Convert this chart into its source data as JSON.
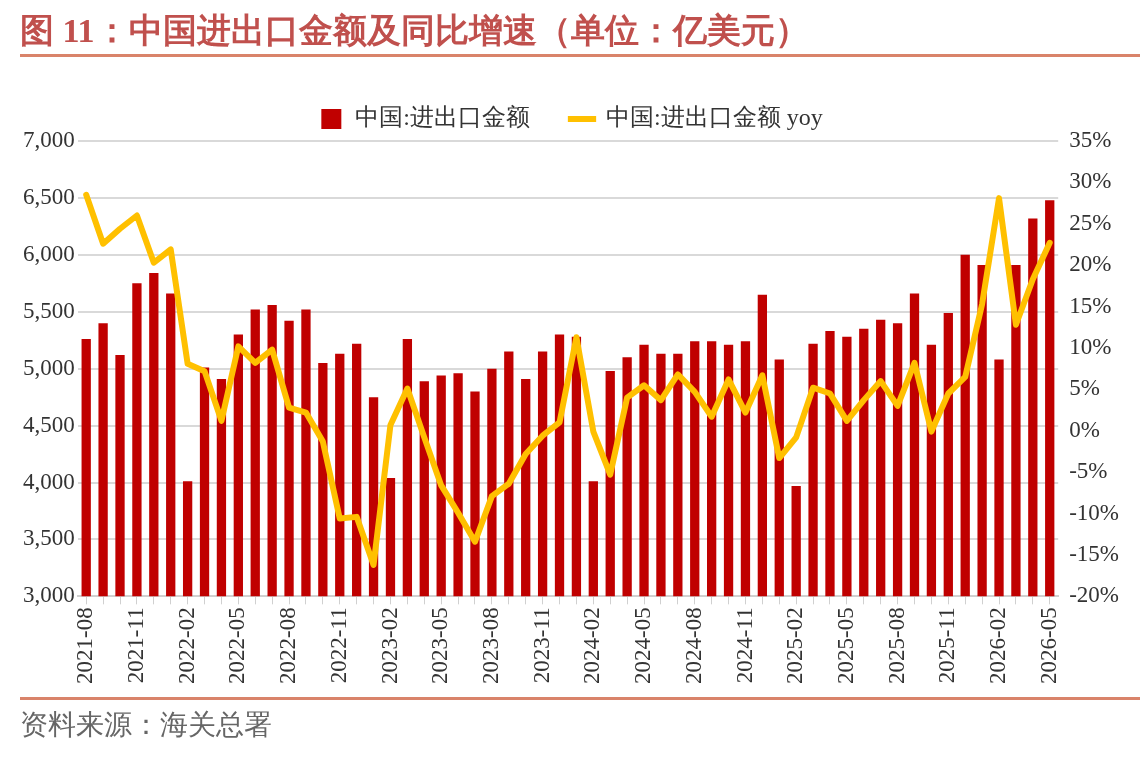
{
  "chart_data": {
    "type": "bar",
    "title": "图 11：中国进出口金额及同比增速（单位：亿美元）",
    "categories": [
      "2021-08",
      null,
      null,
      "2021-11",
      null,
      null,
      "2022-02",
      null,
      null,
      "2022-05",
      null,
      null,
      "2022-08",
      null,
      null,
      "2022-11",
      null,
      null,
      "2023-02",
      null,
      null,
      "2023-05",
      null,
      null,
      "2023-08",
      null,
      null,
      "2023-11",
      null,
      null,
      "2024-02",
      null,
      null,
      "2024-05",
      null,
      null,
      "2024-08",
      null,
      null,
      "2024-11",
      null,
      null,
      "2025-02",
      null,
      null,
      "2025-05",
      null,
      null,
      "2025-08",
      null,
      null,
      "2025-11",
      null,
      null,
      "2026-02",
      null,
      null,
      "2026-05"
    ],
    "series": [
      {
        "name": "中国:进出口金额",
        "color": "#c00000",
        "values": [
          5260,
          5400,
          5120,
          5750,
          5840,
          5660,
          4010,
          5010,
          4910,
          5300,
          5520,
          5560,
          5420,
          5520,
          5050,
          5130,
          5220,
          4750,
          4040,
          5260,
          4890,
          4940,
          4960,
          4800,
          5000,
          5150,
          4910,
          5150,
          5300,
          5280,
          4010,
          4980,
          5100,
          5210,
          5130,
          5130,
          5240,
          5240,
          5210,
          5240,
          5650,
          5080,
          3970,
          5220,
          5330,
          5280,
          5350,
          5430,
          5400,
          5660,
          5210,
          5490,
          6000,
          5910,
          5080,
          5910,
          6320,
          6480
        ]
      },
      {
        "name": "中国:进出口金额 yoy",
        "type": "line",
        "axis": "y2",
        "color": "#ffc000",
        "values": [
          28.5,
          22.6,
          24.4,
          26.0,
          20.3,
          21.9,
          8.1,
          7.2,
          1.2,
          10.2,
          8.2,
          9.8,
          2.8,
          2.2,
          -1.3,
          -10.6,
          -10.4,
          -16.2,
          0.7,
          5.1,
          -0.8,
          -6.6,
          -9.9,
          -13.4,
          -7.9,
          -6.4,
          -2.8,
          -0.6,
          1.0,
          11.3,
          -0.1,
          -5.3,
          4.0,
          5.5,
          3.7,
          6.8,
          4.7,
          1.7,
          6.2,
          2.2,
          6.7,
          -3.3,
          -0.8,
          5.2,
          4.5,
          1.2,
          3.7,
          6.0,
          3.0,
          8.2,
          -0.1,
          4.5,
          6.5,
          15.3,
          28.1,
          12.8,
          18.3,
          22.7
        ]
      }
    ],
    "ylim": [
      3000,
      7000
    ],
    "yticks": [
      {
        "value": 3000,
        "label": "3,000"
      },
      {
        "value": 3500,
        "label": "3,500"
      },
      {
        "value": 4000,
        "label": "4,000"
      },
      {
        "value": 4500,
        "label": "4,500"
      },
      {
        "value": 5000,
        "label": "5,000"
      },
      {
        "value": 5500,
        "label": "5,500"
      },
      {
        "value": 6000,
        "label": "6,000"
      },
      {
        "value": 6500,
        "label": "6,500"
      },
      {
        "value": 7000,
        "label": "7,000"
      }
    ],
    "y2lim": [
      -20,
      35
    ],
    "y2ticks": [
      {
        "value": -20,
        "label": "-20%"
      },
      {
        "value": -15,
        "label": "-15%"
      },
      {
        "value": -10,
        "label": "-10%"
      },
      {
        "value": -5,
        "label": "-5%"
      },
      {
        "value": 0,
        "label": "0%"
      },
      {
        "value": 5,
        "label": "5%"
      },
      {
        "value": 10,
        "label": "10%"
      },
      {
        "value": 15,
        "label": "15%"
      },
      {
        "value": 20,
        "label": "20%"
      },
      {
        "value": 25,
        "label": "25%"
      },
      {
        "value": 30,
        "label": "30%"
      },
      {
        "value": 35,
        "label": "35%"
      }
    ],
    "grid": "y",
    "legend": "top",
    "marker": "none",
    "line_style": "solid",
    "annotations": [
      "资料来源：海关总署"
    ]
  }
}
